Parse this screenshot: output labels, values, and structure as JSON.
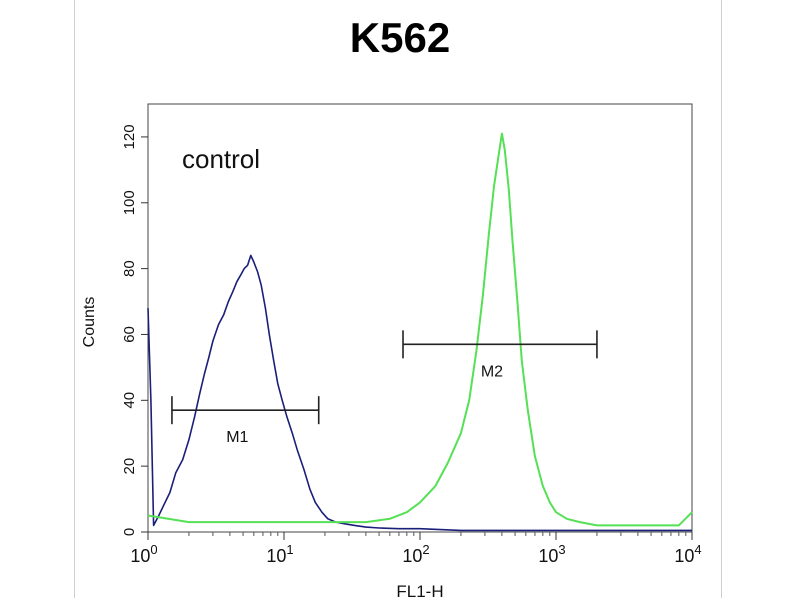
{
  "chart_data": {
    "type": "line",
    "title": "K562",
    "xlabel": "FL1-H",
    "ylabel": "Counts",
    "x_scale": "log",
    "xlim": [
      1,
      10000
    ],
    "ylim": [
      0,
      130
    ],
    "x_ticks": [
      {
        "base": "10",
        "exp": "0"
      },
      {
        "base": "10",
        "exp": "1"
      },
      {
        "base": "10",
        "exp": "2"
      },
      {
        "base": "10",
        "exp": "3"
      },
      {
        "base": "10",
        "exp": "4"
      }
    ],
    "y_ticks": [
      "0",
      "20",
      "40",
      "60",
      "80",
      "100",
      "120"
    ],
    "annotation": "control",
    "series": [
      {
        "color": "#1a1f7a",
        "x": [
          1.0,
          1.05,
          1.1,
          1.2,
          1.3,
          1.45,
          1.6,
          1.8,
          2.0,
          2.2,
          2.4,
          2.6,
          2.8,
          3.0,
          3.3,
          3.6,
          3.9,
          4.2,
          4.5,
          4.8,
          5.1,
          5.4,
          5.7,
          6.0,
          6.4,
          6.8,
          7.3,
          7.8,
          8.4,
          9.0,
          9.7,
          10.5,
          11.5,
          12.5,
          14,
          15.5,
          17,
          19,
          21,
          24,
          28,
          33,
          40,
          50,
          70,
          100,
          200,
          500,
          1000,
          3000,
          10000
        ],
        "y": [
          68,
          40,
          2,
          5,
          8,
          12,
          18,
          22,
          28,
          35,
          42,
          48,
          53,
          58,
          63,
          66,
          70,
          73,
          76,
          78,
          80,
          81,
          84,
          82,
          79,
          75,
          68,
          60,
          52,
          45,
          40,
          35,
          30,
          25,
          19,
          13,
          9,
          6,
          4,
          3,
          2.5,
          2,
          1.5,
          1.2,
          1,
          1,
          0.5,
          0.5,
          0.5,
          0.5,
          0.5
        ]
      },
      {
        "color": "#55e055",
        "x": [
          1.0,
          2,
          5,
          10,
          20,
          40,
          60,
          80,
          100,
          130,
          160,
          200,
          230,
          260,
          290,
          320,
          350,
          380,
          400,
          420,
          450,
          480,
          520,
          560,
          620,
          700,
          800,
          900,
          1000,
          1200,
          1500,
          2000,
          3000,
          5000,
          8000,
          10000
        ],
        "y": [
          5,
          3,
          3,
          3,
          3,
          3,
          4,
          6,
          9,
          14,
          21,
          30,
          40,
          55,
          72,
          90,
          105,
          115,
          121,
          116,
          104,
          88,
          70,
          52,
          37,
          23,
          14,
          9,
          6,
          4,
          3,
          2,
          2,
          2,
          2,
          6
        ]
      }
    ],
    "markers": [
      {
        "label": "M1",
        "x_start": 1.5,
        "x_end": 18,
        "y": 37
      },
      {
        "label": "M2",
        "x_start": 75,
        "x_end": 2000,
        "y": 57
      }
    ]
  }
}
